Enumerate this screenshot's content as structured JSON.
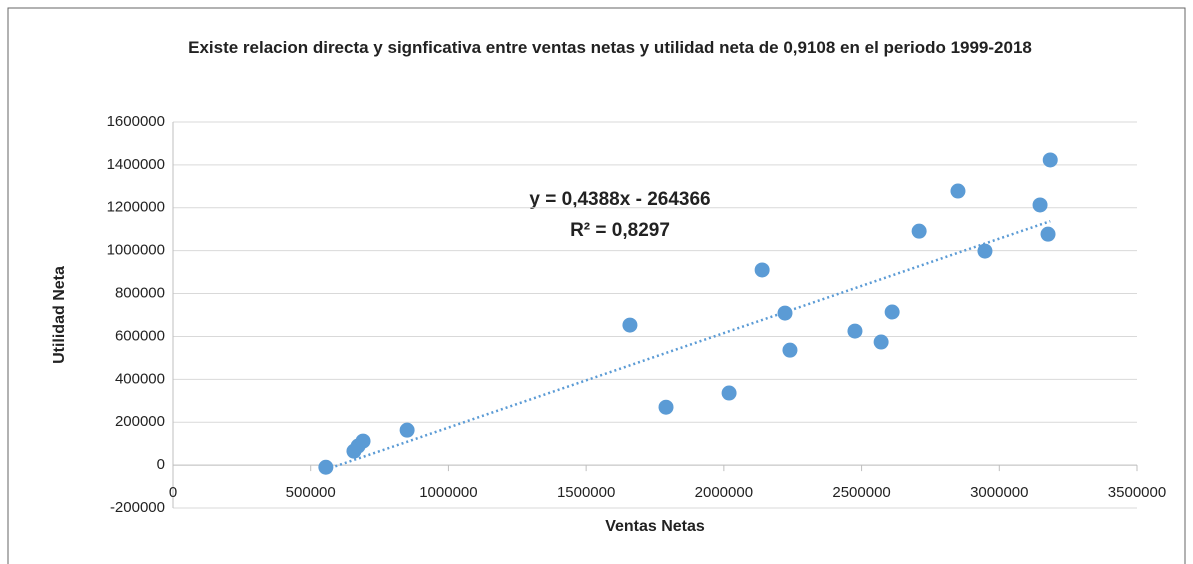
{
  "chart_data": {
    "type": "scatter",
    "title": "Existe relacion directa y signficativa entre ventas netas y utilidad neta  de  0,9108 en el periodo 1999-2018",
    "x_label": "Ventas Netas",
    "y_label": "Utilidad Neta",
    "color": "#5b9bd5",
    "grid": true,
    "xlim": [
      0,
      3500000
    ],
    "xticks": [
      0,
      500000,
      1000000,
      1500000,
      2000000,
      2500000,
      3000000,
      3500000
    ],
    "ylim": [
      -200000,
      1600000
    ],
    "yticks": [
      -200000,
      0,
      200000,
      400000,
      600000,
      800000,
      1000000,
      1200000,
      1400000,
      1600000
    ],
    "x": [
      555000,
      657000,
      672000,
      690000,
      850000,
      1659000,
      1790000,
      2019000,
      2139000,
      2222000,
      2240000,
      2476000,
      2571000,
      2611000,
      2709000,
      2850000,
      2948000,
      3148000,
      3177000,
      3185000
    ],
    "values": [
      -10000,
      65000,
      89000,
      112000,
      163000,
      653000,
      270000,
      336000,
      910000,
      709000,
      536000,
      625000,
      574000,
      714000,
      1091000,
      1278000,
      998000,
      1213000,
      1077000,
      1423000
    ],
    "trendline": {
      "equation": "y = 0,4388x - 264366",
      "r2": "R² = 0,8297"
    }
  }
}
